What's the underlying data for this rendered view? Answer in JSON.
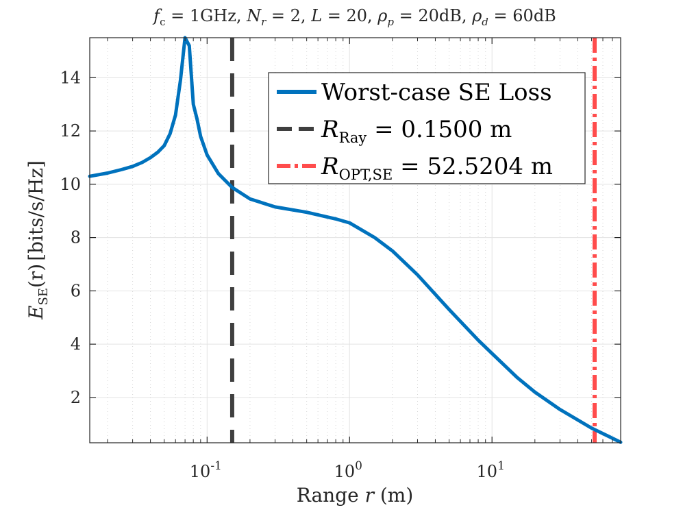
{
  "chart_data": {
    "type": "line",
    "title": "f_c = 1GHz,  N_r = 2, L = 20, ρ_p = 20dB, ρ_d = 60dB",
    "title_parts": {
      "fc_sym": "f",
      "fc_sub": "c",
      "fc_val": " = 1GHz,  ",
      "nr_sym": "N",
      "nr_sub": "r",
      "nr_val": " = 2, ",
      "l_sym": "L",
      "l_val": " = 20, ",
      "rp_sym": "ρ",
      "rp_sub": "p",
      "rp_val": " = 20dB, ",
      "rd_sym": "ρ",
      "rd_sub": "d",
      "rd_val": " = 60dB"
    },
    "xlabel": "Range r (m)",
    "xlabel_parts": {
      "pre": "Range ",
      "var": "r",
      "post": " (m)"
    },
    "ylabel": "E_SE(r) [bits/s/Hz]",
    "ylabel_parts": {
      "sym": "E",
      "sub": "SE",
      "arg": "(r)",
      "unit": "[bits/s/Hz]"
    },
    "xscale": "log",
    "xlim": [
      0.015,
      80
    ],
    "ylim": [
      0.3,
      15.5
    ],
    "grid": true,
    "x_ticks": [
      {
        "value": 0.1,
        "base": "10",
        "exp": "-1"
      },
      {
        "value": 1,
        "base": "10",
        "exp": "0"
      },
      {
        "value": 10,
        "base": "10",
        "exp": "1"
      }
    ],
    "y_ticks": [
      2,
      4,
      6,
      8,
      10,
      12,
      14
    ],
    "series": [
      {
        "name": "Worst-case SE Loss",
        "color": "#0072BD",
        "style": "solid",
        "x": [
          0.015,
          0.02,
          0.025,
          0.03,
          0.035,
          0.04,
          0.045,
          0.05,
          0.055,
          0.06,
          0.065,
          0.07,
          0.075,
          0.08,
          0.085,
          0.09,
          0.1,
          0.12,
          0.15,
          0.2,
          0.3,
          0.5,
          0.8,
          1.0,
          1.5,
          2,
          3,
          5,
          8,
          10,
          15,
          20,
          30,
          50,
          80
        ],
        "y": [
          10.3,
          10.42,
          10.55,
          10.67,
          10.82,
          11.0,
          11.2,
          11.45,
          11.9,
          12.6,
          13.9,
          15.5,
          15.2,
          13.0,
          12.45,
          11.8,
          11.1,
          10.4,
          9.88,
          9.45,
          9.15,
          8.95,
          8.7,
          8.55,
          8.0,
          7.5,
          6.6,
          5.3,
          4.15,
          3.65,
          2.75,
          2.2,
          1.55,
          0.85,
          0.32
        ]
      }
    ],
    "vlines": [
      {
        "name": "R_Ray = 0.1500 m",
        "x": 0.15,
        "color": "#3f3f3f",
        "style": "dashed"
      },
      {
        "name": "R_OPT,SE = 52.5204 m",
        "x": 52.5204,
        "color": "#ff4c4c",
        "style": "dashdot"
      }
    ],
    "legend": {
      "position": "top-right",
      "items": [
        {
          "text": "Worst-case SE Loss"
        },
        {
          "sym": "R",
          "sub": "Ray",
          "rest": " = 0.1500 m"
        },
        {
          "sym": "R",
          "sub": "OPT,SE",
          "rest": " = 52.5204 m"
        }
      ]
    }
  }
}
